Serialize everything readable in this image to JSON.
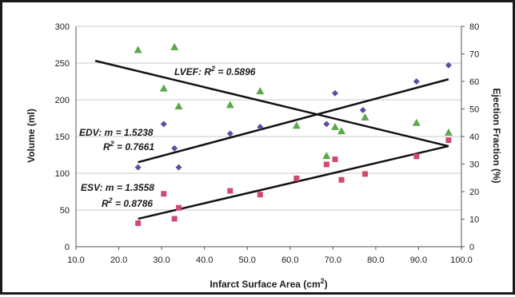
{
  "chart_data": {
    "type": "scatter",
    "xlabel": "Infarct Surface Area (cm",
    "xlabel_sup": "2",
    "xlabel_tail": ")",
    "ylabel_left": "Volume (ml)",
    "ylabel_right": "Ejection Fraction (%)",
    "xlim": [
      10,
      100
    ],
    "ylim_left": [
      0,
      300
    ],
    "ylim_right": [
      0,
      80
    ],
    "x_ticks": [
      "10.0",
      "20.0",
      "30.0",
      "40.0",
      "50.0",
      "60.0",
      "70.0",
      "80.0",
      "90.0",
      "100.0"
    ],
    "y_left_ticks": [
      "0",
      "50",
      "100",
      "150",
      "200",
      "250",
      "300"
    ],
    "y_right_ticks": [
      "0",
      "10",
      "20",
      "30",
      "40",
      "50",
      "60",
      "70",
      "80"
    ],
    "grid": "horizontal",
    "series": [
      {
        "key": "edv",
        "axis": "left",
        "marker": "diamond",
        "color": "#5b4fa0",
        "points": [
          [
            24.5,
            108
          ],
          [
            30.5,
            167
          ],
          [
            33,
            134
          ],
          [
            34,
            108
          ],
          [
            46,
            154
          ],
          [
            53,
            163
          ],
          [
            68.5,
            167
          ],
          [
            70.5,
            209
          ],
          [
            77,
            186
          ],
          [
            89.5,
            225
          ],
          [
            97,
            247
          ]
        ]
      },
      {
        "key": "esv",
        "axis": "left",
        "marker": "square",
        "color": "#d04a6e",
        "points": [
          [
            24.5,
            32
          ],
          [
            30.5,
            72
          ],
          [
            33,
            38
          ],
          [
            34,
            53
          ],
          [
            46,
            76
          ],
          [
            53,
            71
          ],
          [
            61.5,
            93
          ],
          [
            68.5,
            112
          ],
          [
            70.5,
            119
          ],
          [
            72,
            91
          ],
          [
            77.5,
            99
          ],
          [
            89.5,
            123
          ],
          [
            97,
            145
          ]
        ]
      },
      {
        "key": "lvef",
        "axis": "right",
        "marker": "triangle",
        "color": "#5aa84a",
        "points": [
          [
            24.5,
            71.5
          ],
          [
            30.5,
            57.5
          ],
          [
            33,
            72.5
          ],
          [
            34,
            51
          ],
          [
            46,
            51.5
          ],
          [
            53,
            56.5
          ],
          [
            61.5,
            44
          ],
          [
            68.5,
            33
          ],
          [
            70.5,
            43.5
          ],
          [
            72,
            42
          ],
          [
            77.5,
            47
          ],
          [
            89.5,
            45
          ],
          [
            97,
            41.5
          ]
        ]
      }
    ],
    "trendlines": [
      {
        "key": "edv",
        "axis": "left",
        "from": [
          24.5,
          115
        ],
        "to": [
          97,
          228
        ]
      },
      {
        "key": "esv",
        "axis": "left",
        "from": [
          24.5,
          38
        ],
        "to": [
          97,
          137
        ]
      },
      {
        "key": "lvef",
        "axis": "right",
        "from": [
          14.5,
          67.5
        ],
        "to": [
          97,
          36.5
        ]
      }
    ],
    "annotations": {
      "lvef": {
        "prefix": "LVEF: R",
        "sup": "2",
        "suffix": " = 0.5896"
      },
      "edv_m": {
        "text": "EDV: m = 1.5238"
      },
      "edv_r2": {
        "prefix": "R",
        "sup": "2",
        "suffix": " = 0.7661"
      },
      "esv_m": {
        "text": "ESV: m = 1.3558"
      },
      "esv_r2": {
        "prefix": "R",
        "sup": "2",
        "suffix": " = 0.8786"
      }
    }
  }
}
